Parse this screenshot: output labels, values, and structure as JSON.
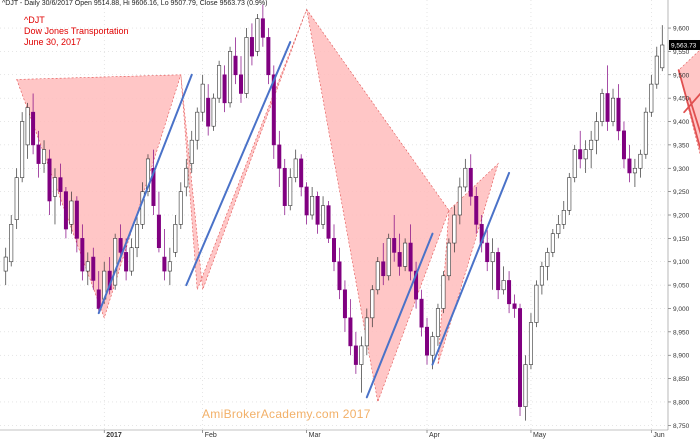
{
  "header": {
    "info_line": "^DJT - Daily 30/6/2017 Open 9514.88, Hi 9606.16, Lo 9507.79, Close 9563.73 (0.9%)"
  },
  "title": {
    "line1": "^DJT",
    "line2": "Dow Jones Transportation",
    "line3": "June 30, 2017"
  },
  "watermark": "AmiBrokerAcademy.com  2017",
  "colors": {
    "up_candle": "#ffffff",
    "down_candle": "#800080",
    "pattern_fill": "#ffbcbc",
    "pattern_edge": "#e05050",
    "trend_line": "#4a72c8",
    "red_line": "#e05050",
    "grid": "#cccccc"
  },
  "chart_data": {
    "type": "candlestick",
    "symbol": "^DJT",
    "period": "Daily",
    "ylim": [
      8740,
      9660
    ],
    "y_ticks": [
      8750,
      8800,
      8850,
      8900,
      8950,
      9000,
      9050,
      9100,
      9150,
      9200,
      9250,
      9300,
      9350,
      9400,
      9450,
      9500,
      9550,
      9600
    ],
    "y_tick_labels": [
      "8,750",
      "8,800",
      "8,850",
      "8,900",
      "8,950",
      "9,000",
      "9,050",
      "9,100",
      "9,150",
      "9,200",
      "9,250",
      "9,300",
      "9,350",
      "9,400",
      "9,450",
      "9,500",
      "9,550",
      "9,600"
    ],
    "last_price_label": "9,563.73",
    "x_labels": [
      {
        "label": "2017",
        "bar": 18
      },
      {
        "label": "Feb",
        "bar": 36
      },
      {
        "label": "Mar",
        "bar": 55
      },
      {
        "label": "Apr",
        "bar": 77
      },
      {
        "label": "May",
        "bar": 96
      },
      {
        "label": "Jun",
        "bar": 118
      }
    ],
    "candles": [
      [
        9080,
        9130,
        9050,
        9110
      ],
      [
        9100,
        9200,
        9090,
        9180
      ],
      [
        9190,
        9300,
        9170,
        9280
      ],
      [
        9280,
        9420,
        9270,
        9400
      ],
      [
        9350,
        9440,
        9320,
        9430
      ],
      [
        9420,
        9460,
        9330,
        9350
      ],
      [
        9350,
        9380,
        9280,
        9310
      ],
      [
        9310,
        9360,
        9290,
        9340
      ],
      [
        9320,
        9340,
        9200,
        9230
      ],
      [
        9240,
        9300,
        9180,
        9280
      ],
      [
        9280,
        9310,
        9220,
        9250
      ],
      [
        9250,
        9260,
        9150,
        9170
      ],
      [
        9180,
        9250,
        9160,
        9230
      ],
      [
        9230,
        9240,
        9120,
        9150
      ],
      [
        9150,
        9180,
        9060,
        9080
      ],
      [
        9080,
        9120,
        9050,
        9100
      ],
      [
        9110,
        9130,
        9040,
        9060
      ],
      [
        9040,
        9080,
        8990,
        9000
      ],
      [
        9020,
        9100,
        9010,
        9080
      ],
      [
        9080,
        9110,
        9030,
        9040
      ],
      [
        9050,
        9160,
        9040,
        9150
      ],
      [
        9150,
        9180,
        9100,
        9120
      ],
      [
        9120,
        9150,
        9060,
        9080
      ],
      [
        9080,
        9150,
        9070,
        9130
      ],
      [
        9130,
        9200,
        9110,
        9180
      ],
      [
        9180,
        9270,
        9170,
        9250
      ],
      [
        9250,
        9330,
        9240,
        9320
      ],
      [
        9300,
        9340,
        9200,
        9220
      ],
      [
        9200,
        9250,
        9120,
        9130
      ],
      [
        9110,
        9170,
        9060,
        9080
      ],
      [
        9080,
        9130,
        9050,
        9100
      ],
      [
        9120,
        9200,
        9110,
        9180
      ],
      [
        9180,
        9270,
        9170,
        9250
      ],
      [
        9260,
        9320,
        9240,
        9300
      ],
      [
        9310,
        9380,
        9290,
        9360
      ],
      [
        9360,
        9430,
        9340,
        9420
      ],
      [
        9420,
        9500,
        9400,
        9480
      ],
      [
        9450,
        9480,
        9370,
        9390
      ],
      [
        9390,
        9460,
        9380,
        9450
      ],
      [
        9450,
        9530,
        9440,
        9520
      ],
      [
        9500,
        9520,
        9420,
        9440
      ],
      [
        9440,
        9560,
        9430,
        9550
      ],
      [
        9540,
        9580,
        9480,
        9500
      ],
      [
        9500,
        9540,
        9440,
        9460
      ],
      [
        9460,
        9600,
        9450,
        9580
      ],
      [
        9580,
        9610,
        9520,
        9540
      ],
      [
        9550,
        9630,
        9540,
        9620
      ],
      [
        9620,
        9650,
        9560,
        9580
      ],
      [
        9580,
        9600,
        9480,
        9500
      ],
      [
        9500,
        9520,
        9320,
        9350
      ],
      [
        9350,
        9380,
        9260,
        9300
      ],
      [
        9300,
        9320,
        9200,
        9220
      ],
      [
        9220,
        9300,
        9210,
        9280
      ],
      [
        9280,
        9340,
        9270,
        9320
      ],
      [
        9320,
        9330,
        9240,
        9260
      ],
      [
        9260,
        9270,
        9180,
        9200
      ],
      [
        9200,
        9260,
        9190,
        9240
      ],
      [
        9240,
        9250,
        9160,
        9180
      ],
      [
        9180,
        9240,
        9170,
        9220
      ],
      [
        9220,
        9230,
        9140,
        9150
      ],
      [
        9150,
        9180,
        9080,
        9100
      ],
      [
        9100,
        9130,
        9020,
        9040
      ],
      [
        9040,
        9060,
        8950,
        8980
      ],
      [
        8980,
        9020,
        8900,
        8920
      ],
      [
        8920,
        8950,
        8860,
        8880
      ],
      [
        8880,
        8940,
        8820,
        8920
      ],
      [
        8920,
        9000,
        8900,
        8980
      ],
      [
        8980,
        9050,
        8960,
        9040
      ],
      [
        9040,
        9110,
        9030,
        9100
      ],
      [
        9100,
        9140,
        9050,
        9070
      ],
      [
        9070,
        9160,
        9060,
        9150
      ],
      [
        9150,
        9200,
        9100,
        9120
      ],
      [
        9120,
        9160,
        9070,
        9090
      ],
      [
        9090,
        9150,
        9080,
        9140
      ],
      [
        9140,
        9180,
        9060,
        9080
      ],
      [
        9080,
        9100,
        9000,
        9020
      ],
      [
        9020,
        9040,
        8940,
        8960
      ],
      [
        8960,
        8980,
        8880,
        8900
      ],
      [
        8900,
        8950,
        8870,
        8940
      ],
      [
        8940,
        9010,
        8920,
        9000
      ],
      [
        9000,
        9080,
        8990,
        9070
      ],
      [
        9070,
        9150,
        9060,
        9140
      ],
      [
        9140,
        9220,
        9120,
        9200
      ],
      [
        9200,
        9280,
        9180,
        9260
      ],
      [
        9260,
        9320,
        9250,
        9300
      ],
      [
        9300,
        9330,
        9220,
        9240
      ],
      [
        9240,
        9260,
        9160,
        9180
      ],
      [
        9180,
        9200,
        9120,
        9140
      ],
      [
        9140,
        9170,
        9080,
        9100
      ],
      [
        9100,
        9150,
        9040,
        9120
      ],
      [
        9120,
        9130,
        9020,
        9040
      ],
      [
        9040,
        9090,
        9030,
        9060
      ],
      [
        9060,
        9080,
        8990,
        9010
      ],
      [
        9010,
        9030,
        8980,
        9000
      ],
      [
        9000,
        9010,
        8770,
        8790
      ],
      [
        8790,
        8900,
        8760,
        8880
      ],
      [
        8880,
        8990,
        8870,
        8970
      ],
      [
        8970,
        9060,
        8960,
        9050
      ],
      [
        9050,
        9100,
        9030,
        9090
      ],
      [
        9090,
        9130,
        9060,
        9120
      ],
      [
        9120,
        9170,
        9110,
        9160
      ],
      [
        9160,
        9200,
        9150,
        9180
      ],
      [
        9180,
        9230,
        9170,
        9210
      ],
      [
        9210,
        9290,
        9200,
        9280
      ],
      [
        9280,
        9350,
        9270,
        9340
      ],
      [
        9340,
        9380,
        9300,
        9320
      ],
      [
        9320,
        9360,
        9290,
        9340
      ],
      [
        9340,
        9380,
        9300,
        9360
      ],
      [
        9360,
        9420,
        9330,
        9400
      ],
      [
        9400,
        9470,
        9390,
        9460
      ],
      [
        9460,
        9520,
        9380,
        9400
      ],
      [
        9400,
        9470,
        9390,
        9450
      ],
      [
        9450,
        9480,
        9360,
        9380
      ],
      [
        9380,
        9400,
        9300,
        9320
      ],
      [
        9320,
        9350,
        9270,
        9290
      ],
      [
        9290,
        9320,
        9260,
        9300
      ],
      [
        9300,
        9340,
        9280,
        9330
      ],
      [
        9330,
        9430,
        9320,
        9420
      ],
      [
        9420,
        9500,
        9410,
        9480
      ],
      [
        9480,
        9560,
        9470,
        9540
      ],
      [
        9514.88,
        9606.16,
        9507.79,
        9563.73
      ]
    ]
  }
}
